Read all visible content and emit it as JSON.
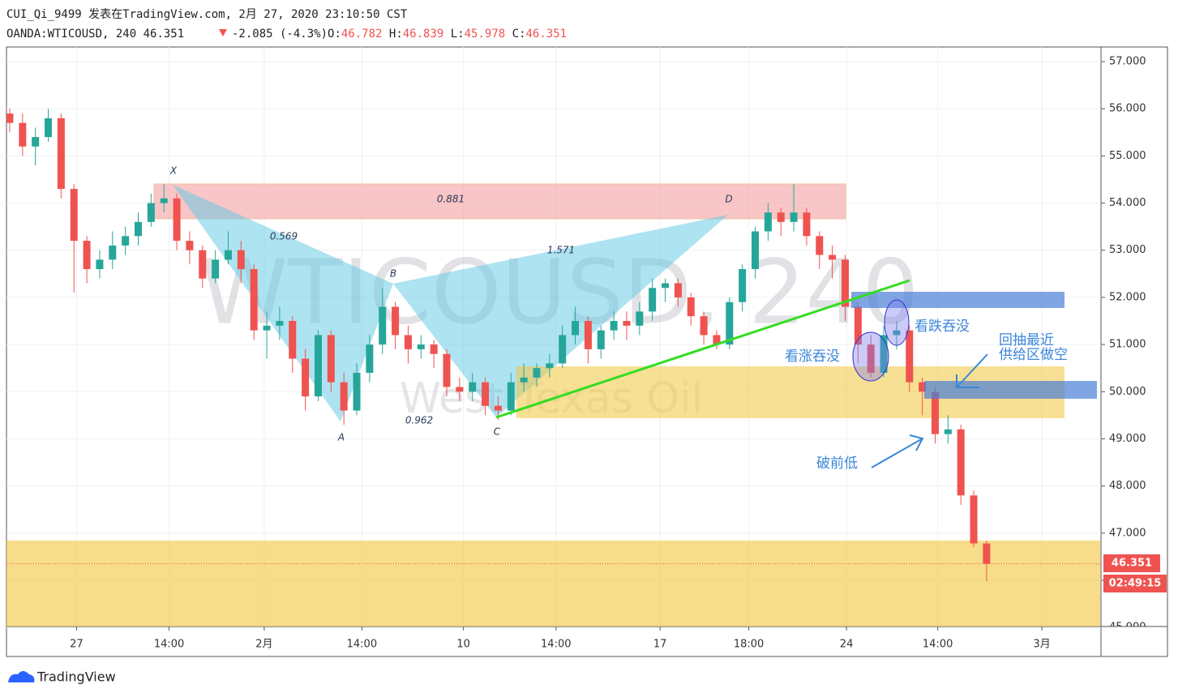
{
  "header": {
    "publisher": "CUI_Qi_9499 发表在TradingView.com, 2月 27, 2020 23:10:50 CST",
    "symbol": "OANDA:WTICOUSD, 240",
    "change": "-2.085 (-4.3%)",
    "ohlc_labels": [
      "O:",
      "H:",
      "L:",
      "C:"
    ]
  },
  "chart_data": {
    "type": "candlestick",
    "watermark": "WTICOUSD, 240",
    "watermark_subtitle": "West Texas Oil",
    "x": [
      0,
      1,
      2,
      3,
      4,
      5,
      6,
      7,
      8,
      9,
      10,
      11,
      12,
      13,
      14,
      15,
      16,
      17,
      18,
      19,
      20,
      21,
      22,
      23,
      24,
      25,
      26,
      27,
      28,
      29,
      30,
      31,
      32,
      33,
      34,
      35,
      36,
      37,
      38,
      39,
      40,
      41,
      42,
      43,
      44,
      45,
      46,
      47,
      48,
      49,
      50,
      51,
      52,
      53,
      54,
      55,
      56,
      57,
      58,
      59,
      60,
      61,
      62,
      63,
      64,
      65,
      66,
      67,
      68,
      69,
      70,
      71,
      72,
      73,
      74,
      75,
      76
    ],
    "open": [
      55.9,
      55.7,
      55.2,
      55.4,
      55.8,
      54.3,
      53.2,
      52.6,
      52.8,
      53.1,
      53.3,
      53.6,
      54.0,
      54.1,
      53.2,
      53.0,
      52.4,
      52.8,
      53.0,
      52.6,
      51.3,
      51.4,
      51.5,
      50.7,
      49.9,
      51.2,
      50.2,
      49.6,
      50.4,
      51.0,
      51.8,
      51.2,
      50.9,
      51.0,
      50.8,
      50.1,
      50.0,
      50.2,
      49.7,
      49.6,
      50.2,
      50.3,
      50.5,
      50.6,
      51.2,
      51.5,
      50.9,
      51.3,
      51.5,
      51.4,
      51.7,
      52.2,
      52.3,
      52.0,
      51.6,
      51.2,
      51.0,
      51.9,
      52.6,
      53.4,
      53.8,
      53.6,
      53.8,
      53.3,
      52.9,
      52.8,
      51.8,
      51.0,
      50.4,
      51.2,
      51.3,
      50.2,
      50.0,
      49.1,
      49.2,
      47.8,
      46.782
    ],
    "high": [
      56.0,
      55.9,
      55.6,
      56.0,
      55.9,
      54.4,
      53.3,
      53.0,
      53.4,
      53.5,
      53.8,
      54.2,
      54.4,
      54.2,
      53.4,
      53.1,
      53.0,
      53.4,
      53.2,
      52.7,
      51.7,
      51.8,
      51.6,
      50.9,
      51.3,
      51.3,
      50.4,
      50.6,
      51.2,
      52.2,
      51.9,
      51.4,
      51.2,
      51.1,
      50.9,
      50.3,
      50.4,
      50.3,
      49.9,
      50.4,
      50.6,
      50.6,
      50.8,
      51.4,
      51.8,
      51.6,
      51.4,
      51.7,
      51.7,
      51.9,
      52.4,
      52.4,
      52.4,
      52.1,
      51.7,
      51.3,
      52.0,
      52.7,
      53.5,
      54.0,
      53.9,
      54.4,
      53.9,
      53.4,
      53.1,
      52.9,
      51.9,
      51.2,
      51.4,
      51.5,
      51.4,
      50.3,
      50.1,
      49.5,
      49.3,
      47.9,
      46.839
    ],
    "low": [
      55.5,
      55.0,
      54.8,
      55.3,
      54.1,
      52.1,
      52.3,
      52.4,
      52.6,
      52.9,
      53.1,
      53.5,
      53.8,
      53.0,
      52.7,
      52.2,
      52.3,
      52.7,
      52.3,
      51.1,
      50.7,
      51.1,
      50.4,
      49.6,
      49.8,
      50.0,
      49.3,
      49.5,
      50.2,
      50.8,
      50.9,
      50.6,
      50.7,
      50.5,
      49.9,
      49.8,
      49.8,
      49.5,
      49.4,
      49.5,
      50.0,
      50.1,
      50.3,
      50.5,
      51.0,
      50.6,
      50.7,
      51.1,
      51.1,
      51.2,
      51.5,
      51.9,
      51.8,
      51.4,
      51.0,
      50.9,
      50.9,
      51.7,
      52.4,
      53.2,
      53.3,
      53.4,
      53.1,
      52.6,
      52.4,
      51.5,
      50.6,
      50.3,
      50.3,
      50.9,
      50.0,
      49.5,
      48.9,
      48.9,
      47.6,
      46.7,
      45.978
    ],
    "close": [
      55.7,
      55.2,
      55.4,
      55.8,
      54.3,
      53.2,
      52.6,
      52.8,
      53.1,
      53.3,
      53.6,
      54.0,
      54.1,
      53.2,
      53.0,
      52.4,
      52.8,
      53.0,
      52.6,
      51.3,
      51.4,
      51.5,
      50.7,
      49.9,
      51.2,
      50.2,
      49.6,
      50.4,
      51.0,
      51.8,
      51.2,
      50.9,
      51.0,
      50.8,
      50.1,
      50.0,
      50.2,
      49.7,
      49.6,
      50.2,
      50.3,
      50.5,
      50.6,
      51.2,
      51.5,
      50.9,
      51.3,
      51.5,
      51.4,
      51.7,
      52.2,
      52.3,
      52.0,
      51.6,
      51.2,
      51.0,
      51.9,
      52.6,
      53.4,
      53.8,
      53.6,
      53.8,
      53.3,
      52.9,
      52.8,
      51.8,
      51.0,
      50.4,
      51.2,
      51.3,
      50.2,
      50.0,
      49.1,
      49.2,
      47.8,
      46.782,
      46.351
    ],
    "up_color": "#26a69a",
    "down_color": "#ef5350",
    "xlim": [
      -0.25,
      84.9
    ],
    "xticks": [
      {
        "value": 5.2,
        "label": "27"
      },
      {
        "value": 12.4,
        "label": "14:00"
      },
      {
        "value": 19.8,
        "label": "2月"
      },
      {
        "value": 27.4,
        "label": "14:00"
      },
      {
        "value": 35.3,
        "label": "10"
      },
      {
        "value": 42.5,
        "label": "14:00"
      },
      {
        "value": 50.6,
        "label": "17"
      },
      {
        "value": 57.5,
        "label": "18:00"
      },
      {
        "value": 65.1,
        "label": "24"
      },
      {
        "value": 72.2,
        "label": "14:00"
      },
      {
        "value": 80.3,
        "label": "3月"
      }
    ],
    "ylim": [
      45.02,
      57.31
    ],
    "yticks": [
      {
        "value": 45,
        "label": "45.000"
      },
      {
        "value": 46,
        "label": "46.000"
      },
      {
        "value": 47,
        "label": "47.000"
      },
      {
        "value": 48,
        "label": "48.000"
      },
      {
        "value": 49,
        "label": "49.000"
      },
      {
        "value": 50,
        "label": "50.000"
      },
      {
        "value": 51,
        "label": "51.000"
      },
      {
        "value": 52,
        "label": "52.000"
      },
      {
        "value": 53,
        "label": "53.000"
      },
      {
        "value": 54,
        "label": "54.000"
      },
      {
        "value": 55,
        "label": "55.000"
      },
      {
        "value": 56,
        "label": "56.000"
      },
      {
        "value": 57,
        "label": "57.000"
      }
    ],
    "grid": true,
    "countdown": "02:49:15",
    "pattern_labels": [
      "X",
      "A",
      "B",
      "C",
      "D",
      "0.569",
      "0.881",
      "1.571",
      "0.962"
    ],
    "annotations": [
      "看涨吞没",
      "看跌吞没",
      "回抽最近",
      "供给区做空",
      "破前低"
    ]
  },
  "footer": {
    "brand": "TradingView"
  }
}
